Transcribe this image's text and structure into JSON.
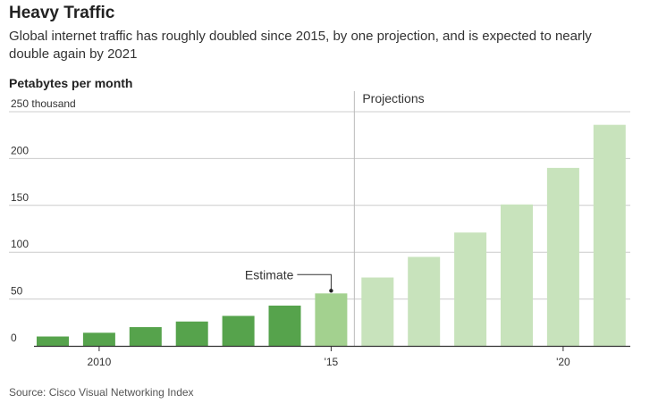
{
  "header": {
    "title": "Heavy Traffic",
    "subtitle": "Global internet traffic has roughly doubled since 2015, by one projection, and is expected to nearly double again by 2021",
    "unit_label": "Petabytes per month"
  },
  "footer": {
    "source": "Source: Cisco Visual Networking Index"
  },
  "colors": {
    "actual": "#56a34c",
    "estimate": "#a3d18f",
    "projection": "#c8e3bc",
    "grid": "#cccccc",
    "divider": "#bbbbbb"
  },
  "chart_data": {
    "type": "bar",
    "title": "Heavy Traffic",
    "ylabel": "Petabytes per month",
    "xlabel": "",
    "categories": [
      2009,
      2010,
      2011,
      2012,
      2013,
      2014,
      2015,
      2016,
      2017,
      2018,
      2019,
      2020,
      2021
    ],
    "values": [
      10,
      14,
      20,
      26,
      32,
      43,
      56,
      73,
      95,
      121,
      151,
      190,
      236
    ],
    "status": [
      "actual",
      "actual",
      "actual",
      "actual",
      "actual",
      "actual",
      "estimate",
      "projection",
      "projection",
      "projection",
      "projection",
      "projection",
      "projection"
    ],
    "ylim": [
      0,
      250
    ],
    "yticks": [
      {
        "value": 0,
        "label": "0"
      },
      {
        "value": 50,
        "label": "50"
      },
      {
        "value": 100,
        "label": "100"
      },
      {
        "value": 150,
        "label": "150"
      },
      {
        "value": 200,
        "label": "200"
      },
      {
        "value": 250,
        "label": "250 thousand"
      }
    ],
    "xticks": [
      {
        "category": 2010,
        "label": "2010"
      },
      {
        "category": 2015,
        "label": "'15"
      },
      {
        "category": 2020,
        "label": "'20"
      }
    ],
    "annotations": {
      "projections_label": "Projections",
      "estimate_label": "Estimate"
    },
    "grid": true
  }
}
